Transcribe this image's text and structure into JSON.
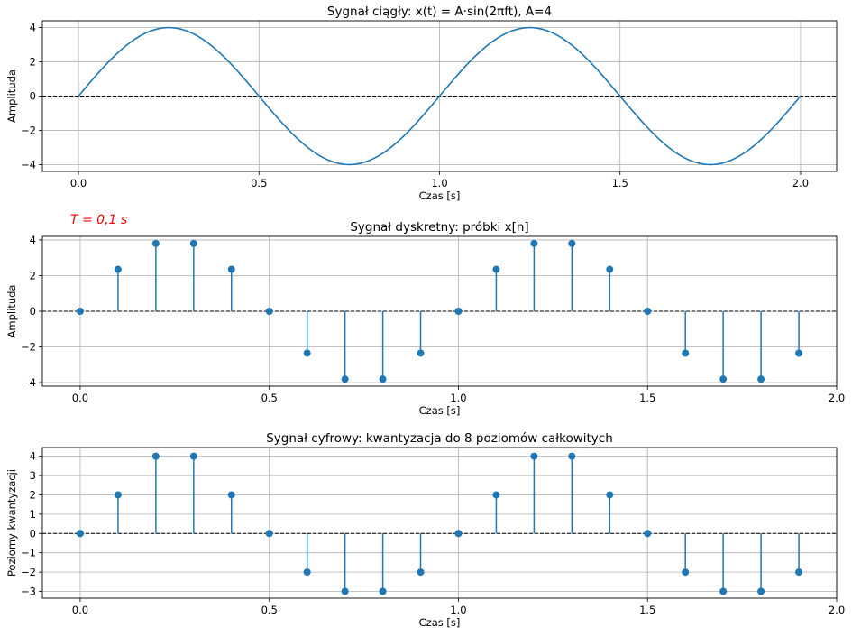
{
  "chart_data": [
    {
      "type": "line",
      "title": "Sygnał ciągły: x(t) = A·sin(2πft), A=4",
      "xlabel": "Czas [s]",
      "ylabel": "Amplituda",
      "xlim": [
        -0.1,
        2.1
      ],
      "ylim": [
        -4.4,
        4.4
      ],
      "xticks": [
        0.0,
        0.5,
        1.0,
        1.5,
        2.0
      ],
      "xtick_labels": [
        "0.0",
        "0.5",
        "1.0",
        "1.5",
        "2.0"
      ],
      "yticks": [
        -4,
        -2,
        0,
        2,
        4
      ],
      "ytick_labels": [
        "−4",
        "−2",
        "0",
        "2",
        "4"
      ],
      "grid": true,
      "function": {
        "amplitude": 4,
        "frequency": 1,
        "t_start": 0,
        "t_end": 2
      },
      "zero_line": true,
      "color": "#1f77b4"
    },
    {
      "type": "stem",
      "title": "Sygnał dyskretny: próbki x[n]",
      "annotation": "T = 0,1 s",
      "annotation_color": "#ff0000",
      "xlabel": "Czas [s]",
      "ylabel": "Amplituda",
      "xlim": [
        -0.1,
        2.0
      ],
      "ylim": [
        -4.2,
        4.2
      ],
      "xticks": [
        0.0,
        0.5,
        1.0,
        1.5,
        2.0
      ],
      "xtick_labels": [
        "0.0",
        "0.5",
        "1.0",
        "1.5",
        "2.0"
      ],
      "yticks": [
        -4,
        -2,
        0,
        2,
        4
      ],
      "ytick_labels": [
        "−4",
        "−2",
        "0",
        "2",
        "4"
      ],
      "grid": true,
      "x": [
        0.0,
        0.1,
        0.2,
        0.3,
        0.4,
        0.5,
        0.6,
        0.7,
        0.8,
        0.9,
        1.0,
        1.1,
        1.2,
        1.3,
        1.4,
        1.5,
        1.6,
        1.7,
        1.8,
        1.9
      ],
      "y": [
        0,
        2.351,
        3.804,
        3.804,
        2.351,
        0,
        -2.351,
        -3.804,
        -3.804,
        -2.351,
        0,
        2.351,
        3.804,
        3.804,
        2.351,
        0,
        -2.351,
        -3.804,
        -3.804,
        -2.351
      ],
      "color": "#1f77b4"
    },
    {
      "type": "stem",
      "title": "Sygnał cyfrowy: kwantyzacja do 8 poziomów całkowitych",
      "xlabel": "Czas [s]",
      "ylabel": "Poziomy kwantyzacji",
      "xlim": [
        -0.1,
        2.0
      ],
      "ylim": [
        -3.35,
        4.45
      ],
      "xticks": [
        0.0,
        0.5,
        1.0,
        1.5,
        2.0
      ],
      "xtick_labels": [
        "0.0",
        "0.5",
        "1.0",
        "1.5",
        "2.0"
      ],
      "yticks": [
        -3,
        -2,
        -1,
        0,
        1,
        2,
        3,
        4
      ],
      "ytick_labels": [
        "−3",
        "−2",
        "−1",
        "0",
        "1",
        "2",
        "3",
        "4"
      ],
      "grid": true,
      "x": [
        0.0,
        0.1,
        0.2,
        0.3,
        0.4,
        0.5,
        0.6,
        0.7,
        0.8,
        0.9,
        1.0,
        1.1,
        1.2,
        1.3,
        1.4,
        1.5,
        1.6,
        1.7,
        1.8,
        1.9
      ],
      "y": [
        0,
        2,
        4,
        4,
        2,
        0,
        -2,
        -3,
        -3,
        -2,
        0,
        2,
        4,
        4,
        2,
        0,
        -2,
        -3,
        -3,
        -2
      ],
      "color": "#1f77b4"
    }
  ]
}
